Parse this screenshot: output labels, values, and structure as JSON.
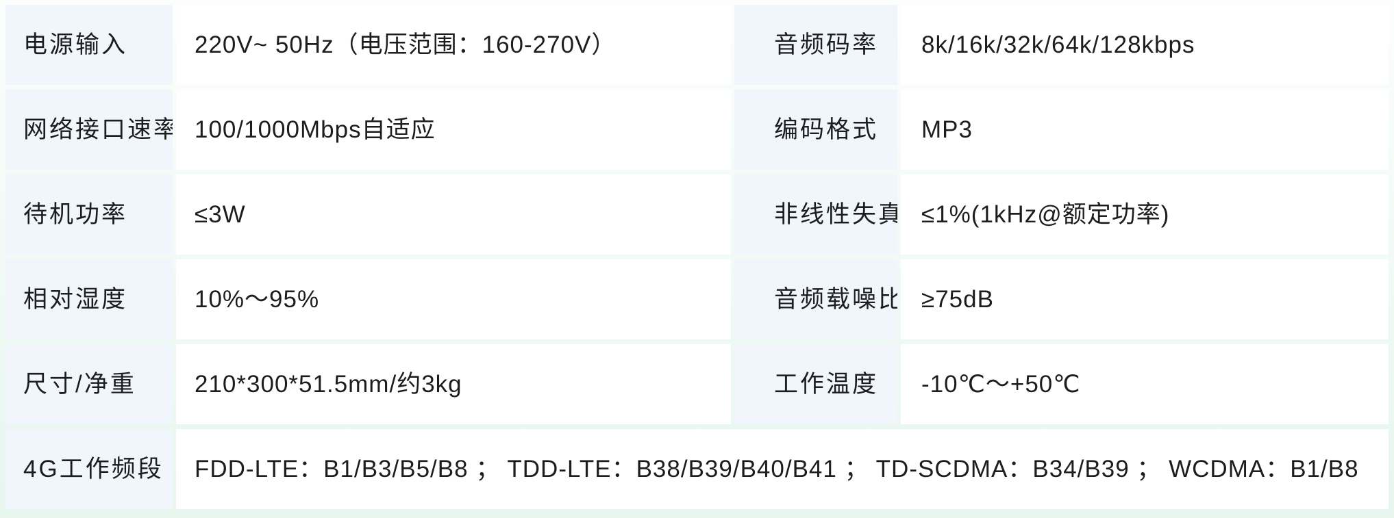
{
  "colors": {
    "label_bg": "#f1f6fd",
    "value_bg": "#ffffff",
    "page_bg_top": "#fbfefd",
    "page_bg_bottom": "#e7f6ee",
    "text": "#1b1d1f"
  },
  "spec_table": {
    "left": [
      {
        "label": "电源输入",
        "value": "220V~ 50Hz（电压范围：160-270V）"
      },
      {
        "label": "网络接口速率",
        "value": "100/1000Mbps自适应"
      },
      {
        "label": "待机功率",
        "value": "≤3W"
      },
      {
        "label": "相对湿度",
        "value": "10%～95%"
      },
      {
        "label": "尺寸/净重",
        "value": "210*300*51.5mm/约3kg"
      }
    ],
    "right": [
      {
        "label": "音频码率",
        "value": "8k/16k/32k/64k/128kbps"
      },
      {
        "label": "编码格式",
        "value": "MP3"
      },
      {
        "label": "非线性失真",
        "value": "≤1%(1kHz@额定功率)"
      },
      {
        "label": "音频载噪比",
        "value": "≥75dB"
      },
      {
        "label": "工作温度",
        "value": "-10℃～+50℃"
      }
    ],
    "bottom": {
      "label": "4G工作频段",
      "value": "FDD-LTE：B1/B3/B5/B8 ； TDD-LTE：B38/B39/B40/B41 ； TD-SCDMA：B34/B39 ； WCDMA：B1/B8"
    }
  }
}
